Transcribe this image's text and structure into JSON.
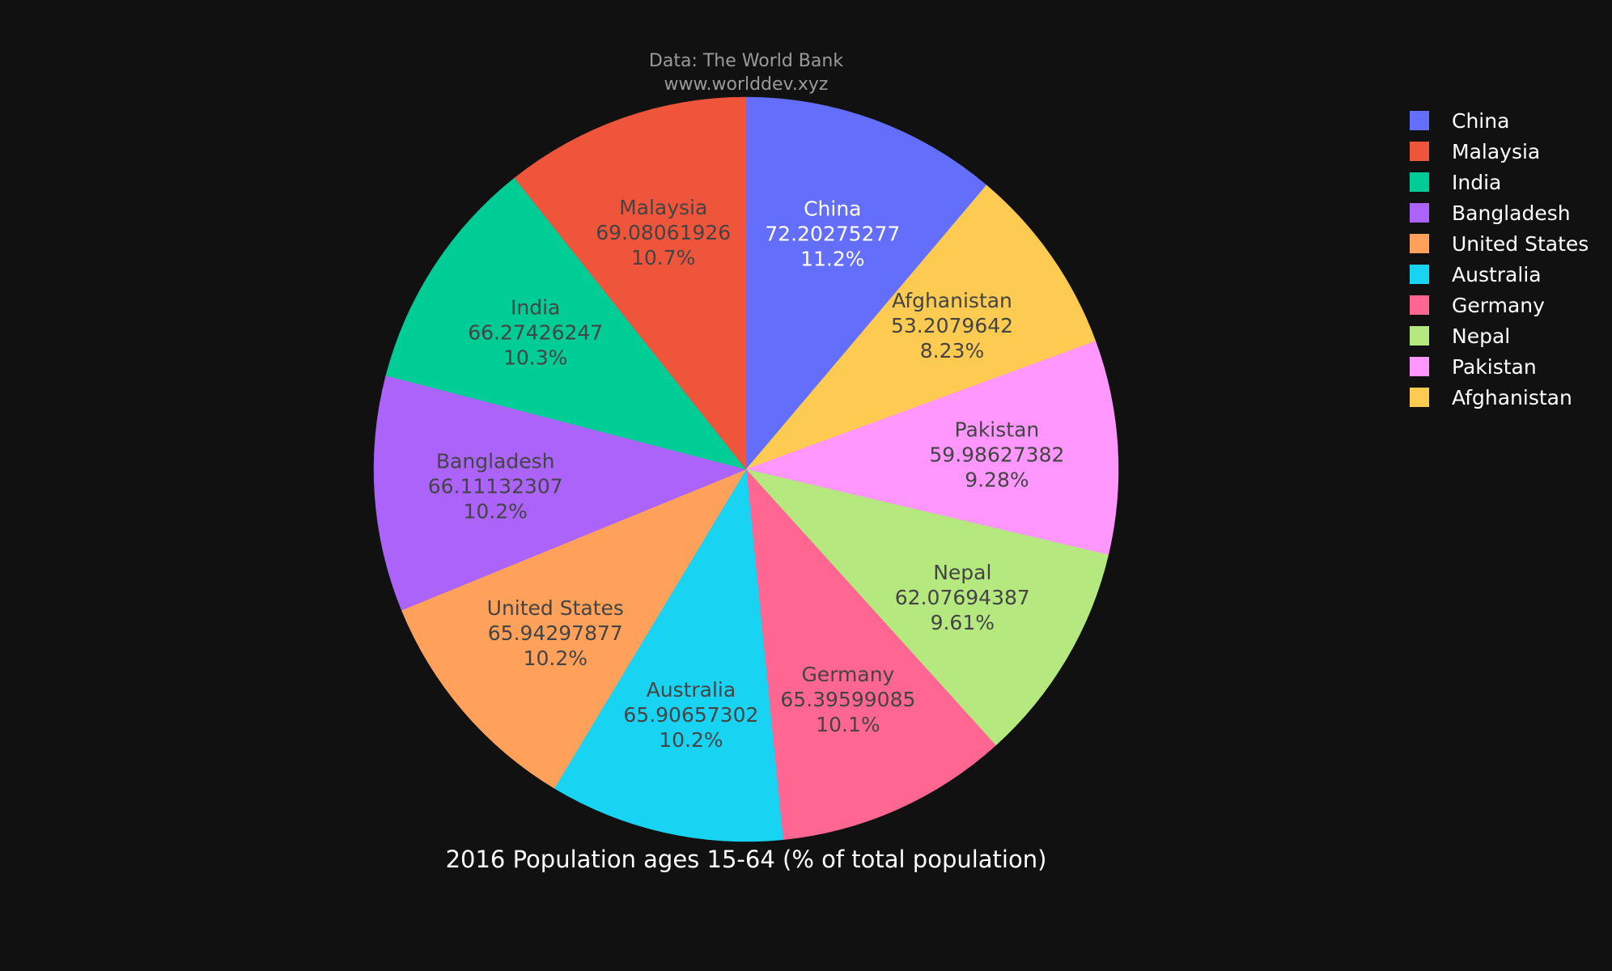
{
  "chart_data": {
    "type": "pie",
    "title": "2016 Population ages 15-64 (% of total population)",
    "source_lines": [
      "Data: The World Bank",
      "www.worlddev.xyz"
    ],
    "legend_placement": "top-right",
    "direction": "clockwise",
    "start_angle_deg": 0,
    "slices": [
      {
        "label": "China",
        "value": 72.20275277,
        "value_text": "72.20275277",
        "percent_text": "11.2%",
        "color": "#636efa",
        "text_color": "#ffffff"
      },
      {
        "label": "Afghanistan",
        "value": 53.2079642,
        "value_text": "53.2079642",
        "percent_text": "8.23%",
        "color": "#fecb52",
        "text_color": "#444444"
      },
      {
        "label": "Pakistan",
        "value": 59.98627382,
        "value_text": "59.98627382",
        "percent_text": "9.28%",
        "color": "#ff97ff",
        "text_color": "#444444"
      },
      {
        "label": "Nepal",
        "value": 62.07694387,
        "value_text": "62.07694387",
        "percent_text": "9.61%",
        "color": "#b6e880",
        "text_color": "#444444"
      },
      {
        "label": "Germany",
        "value": 65.39599085,
        "value_text": "65.39599085",
        "percent_text": "10.1%",
        "color": "#ff6692",
        "text_color": "#444444"
      },
      {
        "label": "Australia",
        "value": 65.90657302,
        "value_text": "65.90657302",
        "percent_text": "10.2%",
        "color": "#19d3f3",
        "text_color": "#444444"
      },
      {
        "label": "United States",
        "value": 65.94297877,
        "value_text": "65.94297877",
        "percent_text": "10.2%",
        "color": "#ffa15a",
        "text_color": "#444444"
      },
      {
        "label": "Bangladesh",
        "value": 66.11132307,
        "value_text": "66.11132307",
        "percent_text": "10.2%",
        "color": "#ab63fa",
        "text_color": "#444444"
      },
      {
        "label": "India",
        "value": 66.27426247,
        "value_text": "66.27426247",
        "percent_text": "10.3%",
        "color": "#00cc96",
        "text_color": "#444444"
      },
      {
        "label": "Malaysia",
        "value": 69.08061926,
        "value_text": "69.08061926",
        "percent_text": "10.7%",
        "color": "#ef553b",
        "text_color": "#444444"
      }
    ],
    "legend_order": [
      "China",
      "Malaysia",
      "India",
      "Bangladesh",
      "United States",
      "Australia",
      "Germany",
      "Nepal",
      "Pakistan",
      "Afghanistan"
    ]
  }
}
